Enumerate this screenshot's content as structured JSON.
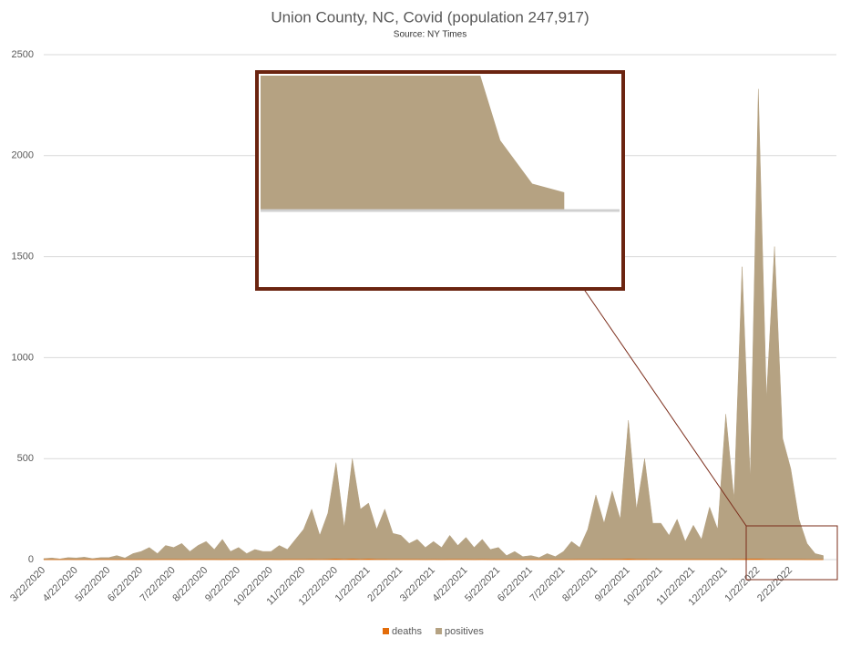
{
  "chart_data": {
    "type": "area",
    "title": "Union County, NC, Covid (population 247,917)",
    "subtitle": "Source: NY Times",
    "categories": [
      "3/22/2020",
      null,
      null,
      null,
      "4/22/2020",
      null,
      null,
      null,
      "5/22/2020",
      null,
      null,
      null,
      "6/22/2020",
      null,
      null,
      null,
      "7/22/2020",
      null,
      null,
      null,
      "8/22/2020",
      null,
      null,
      null,
      "9/22/2020",
      null,
      null,
      null,
      "10/22/2020",
      null,
      null,
      null,
      "11/22/2020",
      null,
      null,
      null,
      "12/22/2020",
      null,
      null,
      null,
      "1/22/2021",
      null,
      null,
      null,
      "2/22/2021",
      null,
      null,
      null,
      "3/22/2021",
      null,
      null,
      null,
      "4/22/2021",
      null,
      null,
      null,
      "5/22/2021",
      null,
      null,
      null,
      "6/22/2021",
      null,
      null,
      null,
      "7/22/2021",
      null,
      null,
      null,
      "8/22/2021",
      null,
      null,
      null,
      "9/22/2021",
      null,
      null,
      null,
      "10/22/2021",
      null,
      null,
      null,
      "11/22/2021",
      null,
      null,
      null,
      "12/22/2021",
      null,
      null,
      null,
      "1/22/2022",
      null,
      null,
      null,
      "2/22/2022",
      null,
      null,
      null,
      null
    ],
    "series": [
      {
        "name": "deaths",
        "color": "#e36c0a",
        "values": [
          0,
          0,
          0,
          1,
          0,
          1,
          0,
          1,
          1,
          0,
          1,
          0,
          1,
          0,
          1,
          1,
          1,
          0,
          1,
          1,
          1,
          1,
          0,
          1,
          0,
          1,
          0,
          1,
          1,
          0,
          1,
          1,
          1,
          2,
          1,
          2,
          3,
          2,
          3,
          2,
          3,
          2,
          2,
          1,
          1,
          1,
          1,
          0,
          1,
          0,
          1,
          1,
          1,
          0,
          1,
          0,
          0,
          0,
          0,
          0,
          0,
          0,
          0,
          0,
          0,
          0,
          1,
          1,
          1,
          2,
          2,
          2,
          3,
          2,
          2,
          1,
          1,
          1,
          1,
          1,
          1,
          1,
          1,
          1,
          1,
          2,
          2,
          3,
          3,
          2,
          2,
          1,
          1,
          1,
          0,
          0,
          0
        ]
      },
      {
        "name": "positives",
        "color": "#b5a282",
        "values": [
          5,
          8,
          3,
          10,
          8,
          12,
          5,
          10,
          10,
          20,
          8,
          30,
          40,
          60,
          30,
          70,
          60,
          80,
          40,
          70,
          90,
          50,
          100,
          40,
          60,
          30,
          50,
          40,
          40,
          70,
          50,
          100,
          150,
          250,
          120,
          230,
          480,
          160,
          500,
          250,
          280,
          150,
          250,
          130,
          120,
          80,
          100,
          60,
          90,
          60,
          120,
          70,
          110,
          60,
          100,
          50,
          60,
          20,
          40,
          15,
          20,
          10,
          30,
          15,
          40,
          90,
          60,
          150,
          320,
          180,
          340,
          200,
          690,
          250,
          500,
          180,
          180,
          120,
          200,
          90,
          170,
          100,
          260,
          150,
          720,
          300,
          1450,
          400,
          2330,
          800,
          1550,
          600,
          450,
          200,
          80,
          30,
          20
        ]
      }
    ],
    "ylim": [
      0,
      2500
    ],
    "yticks": [
      0,
      500,
      1000,
      1500,
      2000,
      2500
    ],
    "grid": true,
    "legend": "bottom"
  }
}
